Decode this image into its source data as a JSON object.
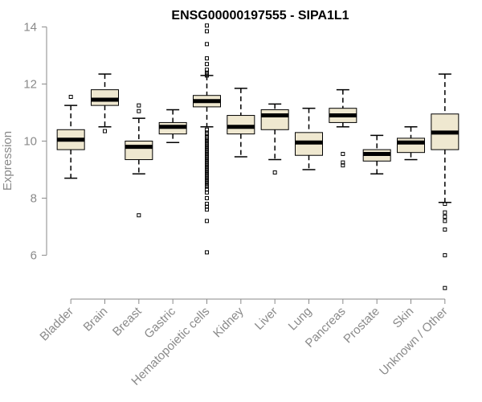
{
  "chart_data": {
    "type": "boxplot",
    "title": "ENSG00000197555 - SIPA1L1",
    "ylabel": "Expression",
    "xlabel": "",
    "ylim": [
      4.8,
      14.1
    ],
    "yticks": [
      6,
      8,
      10,
      12,
      14
    ],
    "grid": false,
    "legend": "none",
    "box_fill": "#efe8d0",
    "categories": [
      "Bladder",
      "Brain",
      "Breast",
      "Gastric",
      "Hematopoietic cells",
      "Kidney",
      "Liver",
      "Lung",
      "Pancreas",
      "Prostate",
      "Skin",
      "Unknown / Other"
    ],
    "boxes": [
      {
        "category": "Bladder",
        "min": 8.7,
        "q1": 9.7,
        "median": 10.05,
        "q3": 10.4,
        "max": 11.25,
        "outliers": [
          11.55
        ]
      },
      {
        "category": "Brain",
        "min": 10.5,
        "q1": 11.25,
        "median": 11.45,
        "q3": 11.8,
        "max": 12.35,
        "outliers": [
          10.35
        ]
      },
      {
        "category": "Breast",
        "min": 8.85,
        "q1": 9.35,
        "median": 9.8,
        "q3": 10.0,
        "max": 10.8,
        "outliers": [
          11.25,
          11.05,
          7.4
        ]
      },
      {
        "category": "Gastric",
        "min": 9.95,
        "q1": 10.25,
        "median": 10.5,
        "q3": 10.65,
        "max": 11.1,
        "outliers": []
      },
      {
        "category": "Hematopoietic cells",
        "min": 10.5,
        "q1": 11.2,
        "median": 11.4,
        "q3": 11.6,
        "max": 12.3,
        "outliers": [
          14.05,
          13.85,
          13.4,
          12.9,
          12.7,
          12.5,
          12.4,
          12.35,
          12.3,
          10.4,
          10.3,
          10.25,
          10.15,
          10.1,
          10.05,
          10.0,
          9.95,
          9.9,
          9.85,
          9.8,
          9.75,
          9.7,
          9.65,
          9.6,
          9.55,
          9.5,
          9.45,
          9.4,
          9.35,
          9.3,
          9.25,
          9.2,
          9.15,
          9.1,
          9.05,
          9.0,
          8.95,
          8.9,
          8.85,
          8.8,
          8.75,
          8.7,
          8.65,
          8.6,
          8.55,
          8.5,
          8.45,
          8.4,
          8.3,
          8.2,
          8.0,
          7.8,
          7.7,
          7.6,
          7.2,
          6.1
        ]
      },
      {
        "category": "Kidney",
        "min": 9.45,
        "q1": 10.25,
        "median": 10.5,
        "q3": 10.9,
        "max": 11.85,
        "outliers": []
      },
      {
        "category": "Liver",
        "min": 9.35,
        "q1": 10.4,
        "median": 10.9,
        "q3": 11.1,
        "max": 11.3,
        "outliers": [
          8.9
        ]
      },
      {
        "category": "Lung",
        "min": 9.0,
        "q1": 9.5,
        "median": 9.95,
        "q3": 10.3,
        "max": 11.15,
        "outliers": []
      },
      {
        "category": "Pancreas",
        "min": 10.5,
        "q1": 10.65,
        "median": 10.9,
        "q3": 11.15,
        "max": 11.8,
        "outliers": [
          9.55,
          9.25,
          9.15
        ]
      },
      {
        "category": "Prostate",
        "min": 8.85,
        "q1": 9.3,
        "median": 9.55,
        "q3": 9.7,
        "max": 10.2,
        "outliers": []
      },
      {
        "category": "Skin",
        "min": 9.35,
        "q1": 9.6,
        "median": 9.95,
        "q3": 10.1,
        "max": 10.5,
        "outliers": []
      },
      {
        "category": "Unknown / Other",
        "min": 7.85,
        "q1": 9.7,
        "median": 10.3,
        "q3": 10.95,
        "max": 12.35,
        "outliers": [
          7.8,
          7.5,
          7.35,
          7.2,
          6.9,
          6.0,
          4.85
        ]
      }
    ]
  }
}
